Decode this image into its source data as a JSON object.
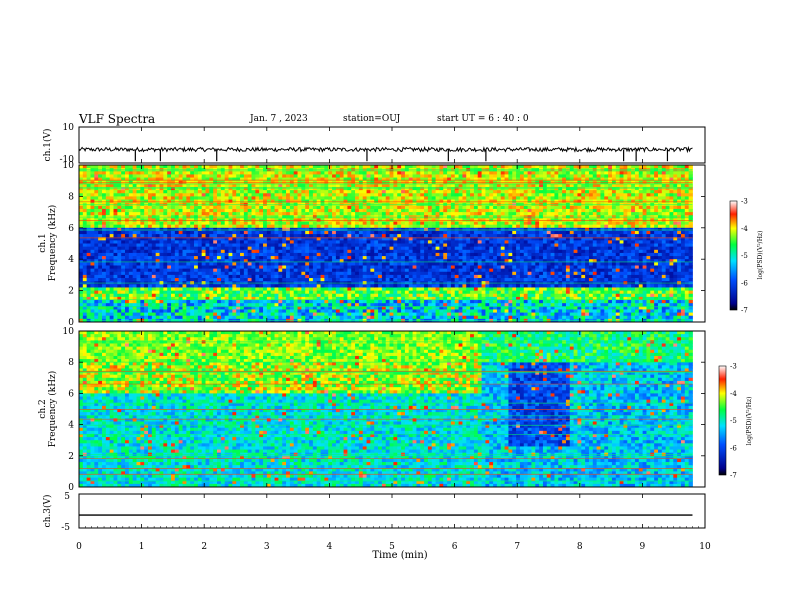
{
  "header": {
    "title": "VLF Spectra",
    "date": "Jan. 7 , 2023",
    "station": "station=OUJ",
    "start": "start UT =  6 : 40 : 0"
  },
  "chart_data": [
    {
      "type": "line",
      "name": "ch1-waveform",
      "ylabel": "ch.1(V)",
      "ylim": [
        -10,
        10
      ],
      "ytick_labels": [
        "10",
        "-10"
      ],
      "x_range": [
        0,
        10
      ],
      "baseline": -2.5,
      "description_values": {
        "mean": -2.5,
        "spike_times_min": [
          0.9,
          1.3,
          2.2,
          4.6,
          5.9,
          6.5,
          8.7,
          8.9,
          9.4
        ]
      }
    },
    {
      "type": "heatmap",
      "name": "ch1-spectrogram",
      "ylabel": "ch.1",
      "ylabel2": "Frequency (kHz)",
      "ylim": [
        0,
        10
      ],
      "ytick_labels": [
        "0",
        "2",
        "4",
        "6",
        "8",
        "10"
      ],
      "x_range": [
        0,
        9.8
      ],
      "colorbar": {
        "label": "log(PSD)(V²/Hz)",
        "range": [
          -7,
          -3
        ],
        "tick_labels": [
          "-3",
          "-4",
          "-5",
          "-6",
          "-7"
        ]
      }
    },
    {
      "type": "heatmap",
      "name": "ch2-spectrogram",
      "ylabel": "ch.2",
      "ylabel2": "Frequency (kHz)",
      "ylim": [
        0,
        10
      ],
      "ytick_labels": [
        "0",
        "2",
        "4",
        "6",
        "8",
        "10"
      ],
      "x_range": [
        0,
        9.8
      ],
      "colorbar": {
        "label": "log(PSD)(V²/Hz)",
        "range": [
          -7,
          -3
        ],
        "tick_labels": [
          "-3",
          "-4",
          "-5",
          "-6",
          "-7"
        ]
      }
    },
    {
      "type": "line",
      "name": "ch3-waveform",
      "ylabel": "ch.3(V)",
      "ylim": [
        -5,
        5
      ],
      "ytick_labels": [
        "5",
        "-5"
      ],
      "x_range": [
        0,
        9.8
      ],
      "values_constant": -1.2
    }
  ],
  "xaxis": {
    "label": "Time (min)",
    "range": [
      0,
      10
    ],
    "tick_labels": [
      "0",
      "1",
      "2",
      "3",
      "4",
      "5",
      "6",
      "7",
      "8",
      "9",
      "10"
    ]
  },
  "colors": {
    "frame": "#000000",
    "low": "#00008b",
    "high": "#cc0000"
  }
}
